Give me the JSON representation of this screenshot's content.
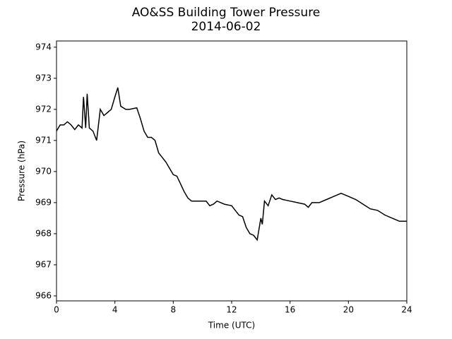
{
  "chart_data": {
    "type": "line",
    "title": "AO&SS Building Tower Pressure",
    "subtitle": "2014-06-02",
    "x_label": "Time (UTC)",
    "y_label": "Pressure (hPa)",
    "x": [
      0,
      0.25,
      0.5,
      0.75,
      1.0,
      1.25,
      1.5,
      1.75,
      1.85,
      2.0,
      2.1,
      2.25,
      2.5,
      2.75,
      3.0,
      3.25,
      3.5,
      3.75,
      4.0,
      4.2,
      4.4,
      4.75,
      5.0,
      5.5,
      5.75,
      6.0,
      6.25,
      6.5,
      6.75,
      7.0,
      7.25,
      7.5,
      7.75,
      8.0,
      8.25,
      8.5,
      8.75,
      9.0,
      9.25,
      9.5,
      10.0,
      10.25,
      10.5,
      10.75,
      11.0,
      11.5,
      12.0,
      12.25,
      12.5,
      12.75,
      13.0,
      13.25,
      13.5,
      13.75,
      14.0,
      14.1,
      14.25,
      14.5,
      14.75,
      15.0,
      15.25,
      15.5,
      16.0,
      16.5,
      17.0,
      17.25,
      17.5,
      18.0,
      18.5,
      19.0,
      19.5,
      20.0,
      20.5,
      21.0,
      21.5,
      22.0,
      22.5,
      23.0,
      23.5,
      24.0
    ],
    "series": [
      {
        "name": "Pressure",
        "color": "#000000",
        "values": [
          971.3,
          971.5,
          971.5,
          971.6,
          971.5,
          971.35,
          971.5,
          971.4,
          972.4,
          971.4,
          972.5,
          971.4,
          971.3,
          971.0,
          972.0,
          971.8,
          971.9,
          972.0,
          972.4,
          972.7,
          972.1,
          972.0,
          972.0,
          972.05,
          971.7,
          971.3,
          971.1,
          971.1,
          971.0,
          970.6,
          970.45,
          970.3,
          970.1,
          969.9,
          969.85,
          969.6,
          969.35,
          969.15,
          969.05,
          969.05,
          969.05,
          969.05,
          968.9,
          968.95,
          969.05,
          968.95,
          968.9,
          968.75,
          968.6,
          968.55,
          968.2,
          968.0,
          967.95,
          967.8,
          968.5,
          968.3,
          969.05,
          968.9,
          969.25,
          969.1,
          969.15,
          969.1,
          969.05,
          969.0,
          968.95,
          968.85,
          969.0,
          969.0,
          969.1,
          969.2,
          969.3,
          969.2,
          969.1,
          968.95,
          968.8,
          968.75,
          968.6,
          968.5,
          968.4,
          968.4
        ]
      }
    ],
    "xlim": [
      0,
      24
    ],
    "xticks": [
      0,
      4,
      8,
      12,
      16,
      20,
      24
    ],
    "ylim": [
      965.84,
      974.2
    ],
    "yticks": [
      966,
      967,
      968,
      969,
      970,
      971,
      972,
      973,
      974
    ]
  }
}
